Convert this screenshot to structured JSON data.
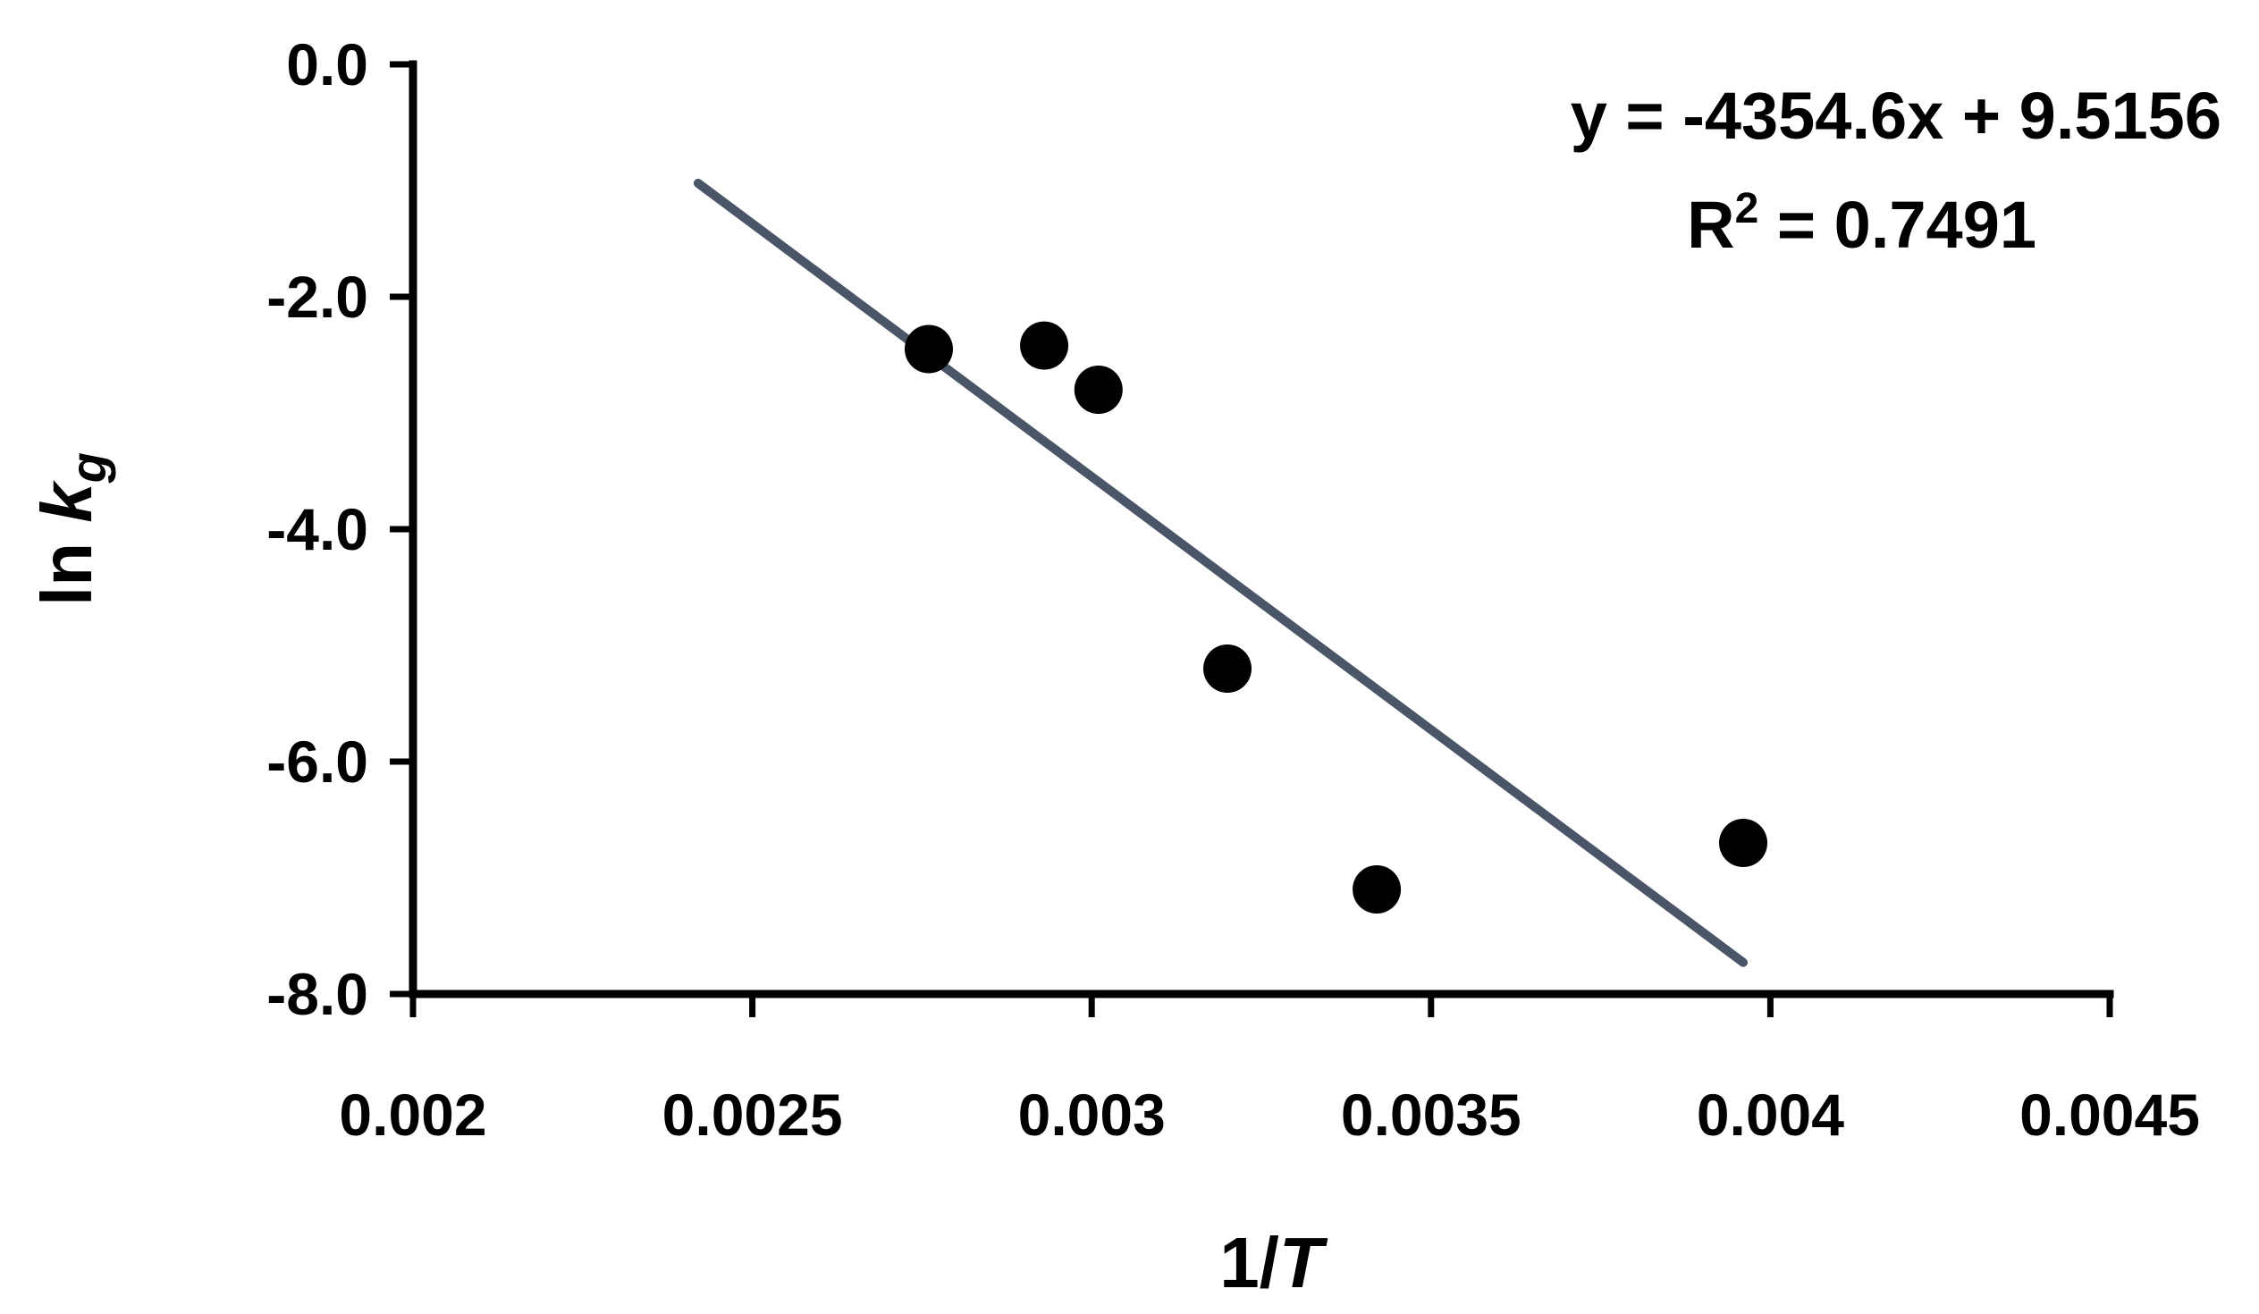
{
  "chart_data": {
    "type": "scatter",
    "xlabel": {
      "main": "1/",
      "italic": "T"
    },
    "ylabel": {
      "main": "ln ",
      "italic": "k",
      "subscript": "g"
    },
    "xlim": [
      0.002,
      0.0045
    ],
    "ylim": [
      -8.0,
      0.0
    ],
    "x_ticks": [
      0.002,
      0.0025,
      0.003,
      0.0035,
      0.004,
      0.0045
    ],
    "x_tick_labels": [
      "0.002",
      "0.0025",
      "0.003",
      "0.0035",
      "0.004",
      "0.0045"
    ],
    "y_ticks": [
      0.0,
      -2.0,
      -4.0,
      -6.0,
      -8.0
    ],
    "y_tick_labels": [
      "0.0",
      "-2.0",
      "-4.0",
      "-6.0",
      "-8.0"
    ],
    "points": [
      {
        "x": 0.00276,
        "y": -2.45
      },
      {
        "x": 0.00293,
        "y": -2.42
      },
      {
        "x": 0.00301,
        "y": -2.8
      },
      {
        "x": 0.0032,
        "y": -5.2
      },
      {
        "x": 0.00342,
        "y": -7.1
      },
      {
        "x": 0.00396,
        "y": -6.7
      }
    ],
    "trendline": {
      "slope": -4354.6,
      "intercept": 9.5156,
      "x_range": [
        0.00242,
        0.00396
      ]
    },
    "equation_text": "y = -4354.6x + 9.5156",
    "r2_text": {
      "label": "R",
      "sup": "2",
      "value": " = 0.7491"
    },
    "grid": false,
    "legend": "none",
    "colors": {
      "points": "#000000",
      "trendline": "#4a5568",
      "axes": "#000000"
    }
  }
}
